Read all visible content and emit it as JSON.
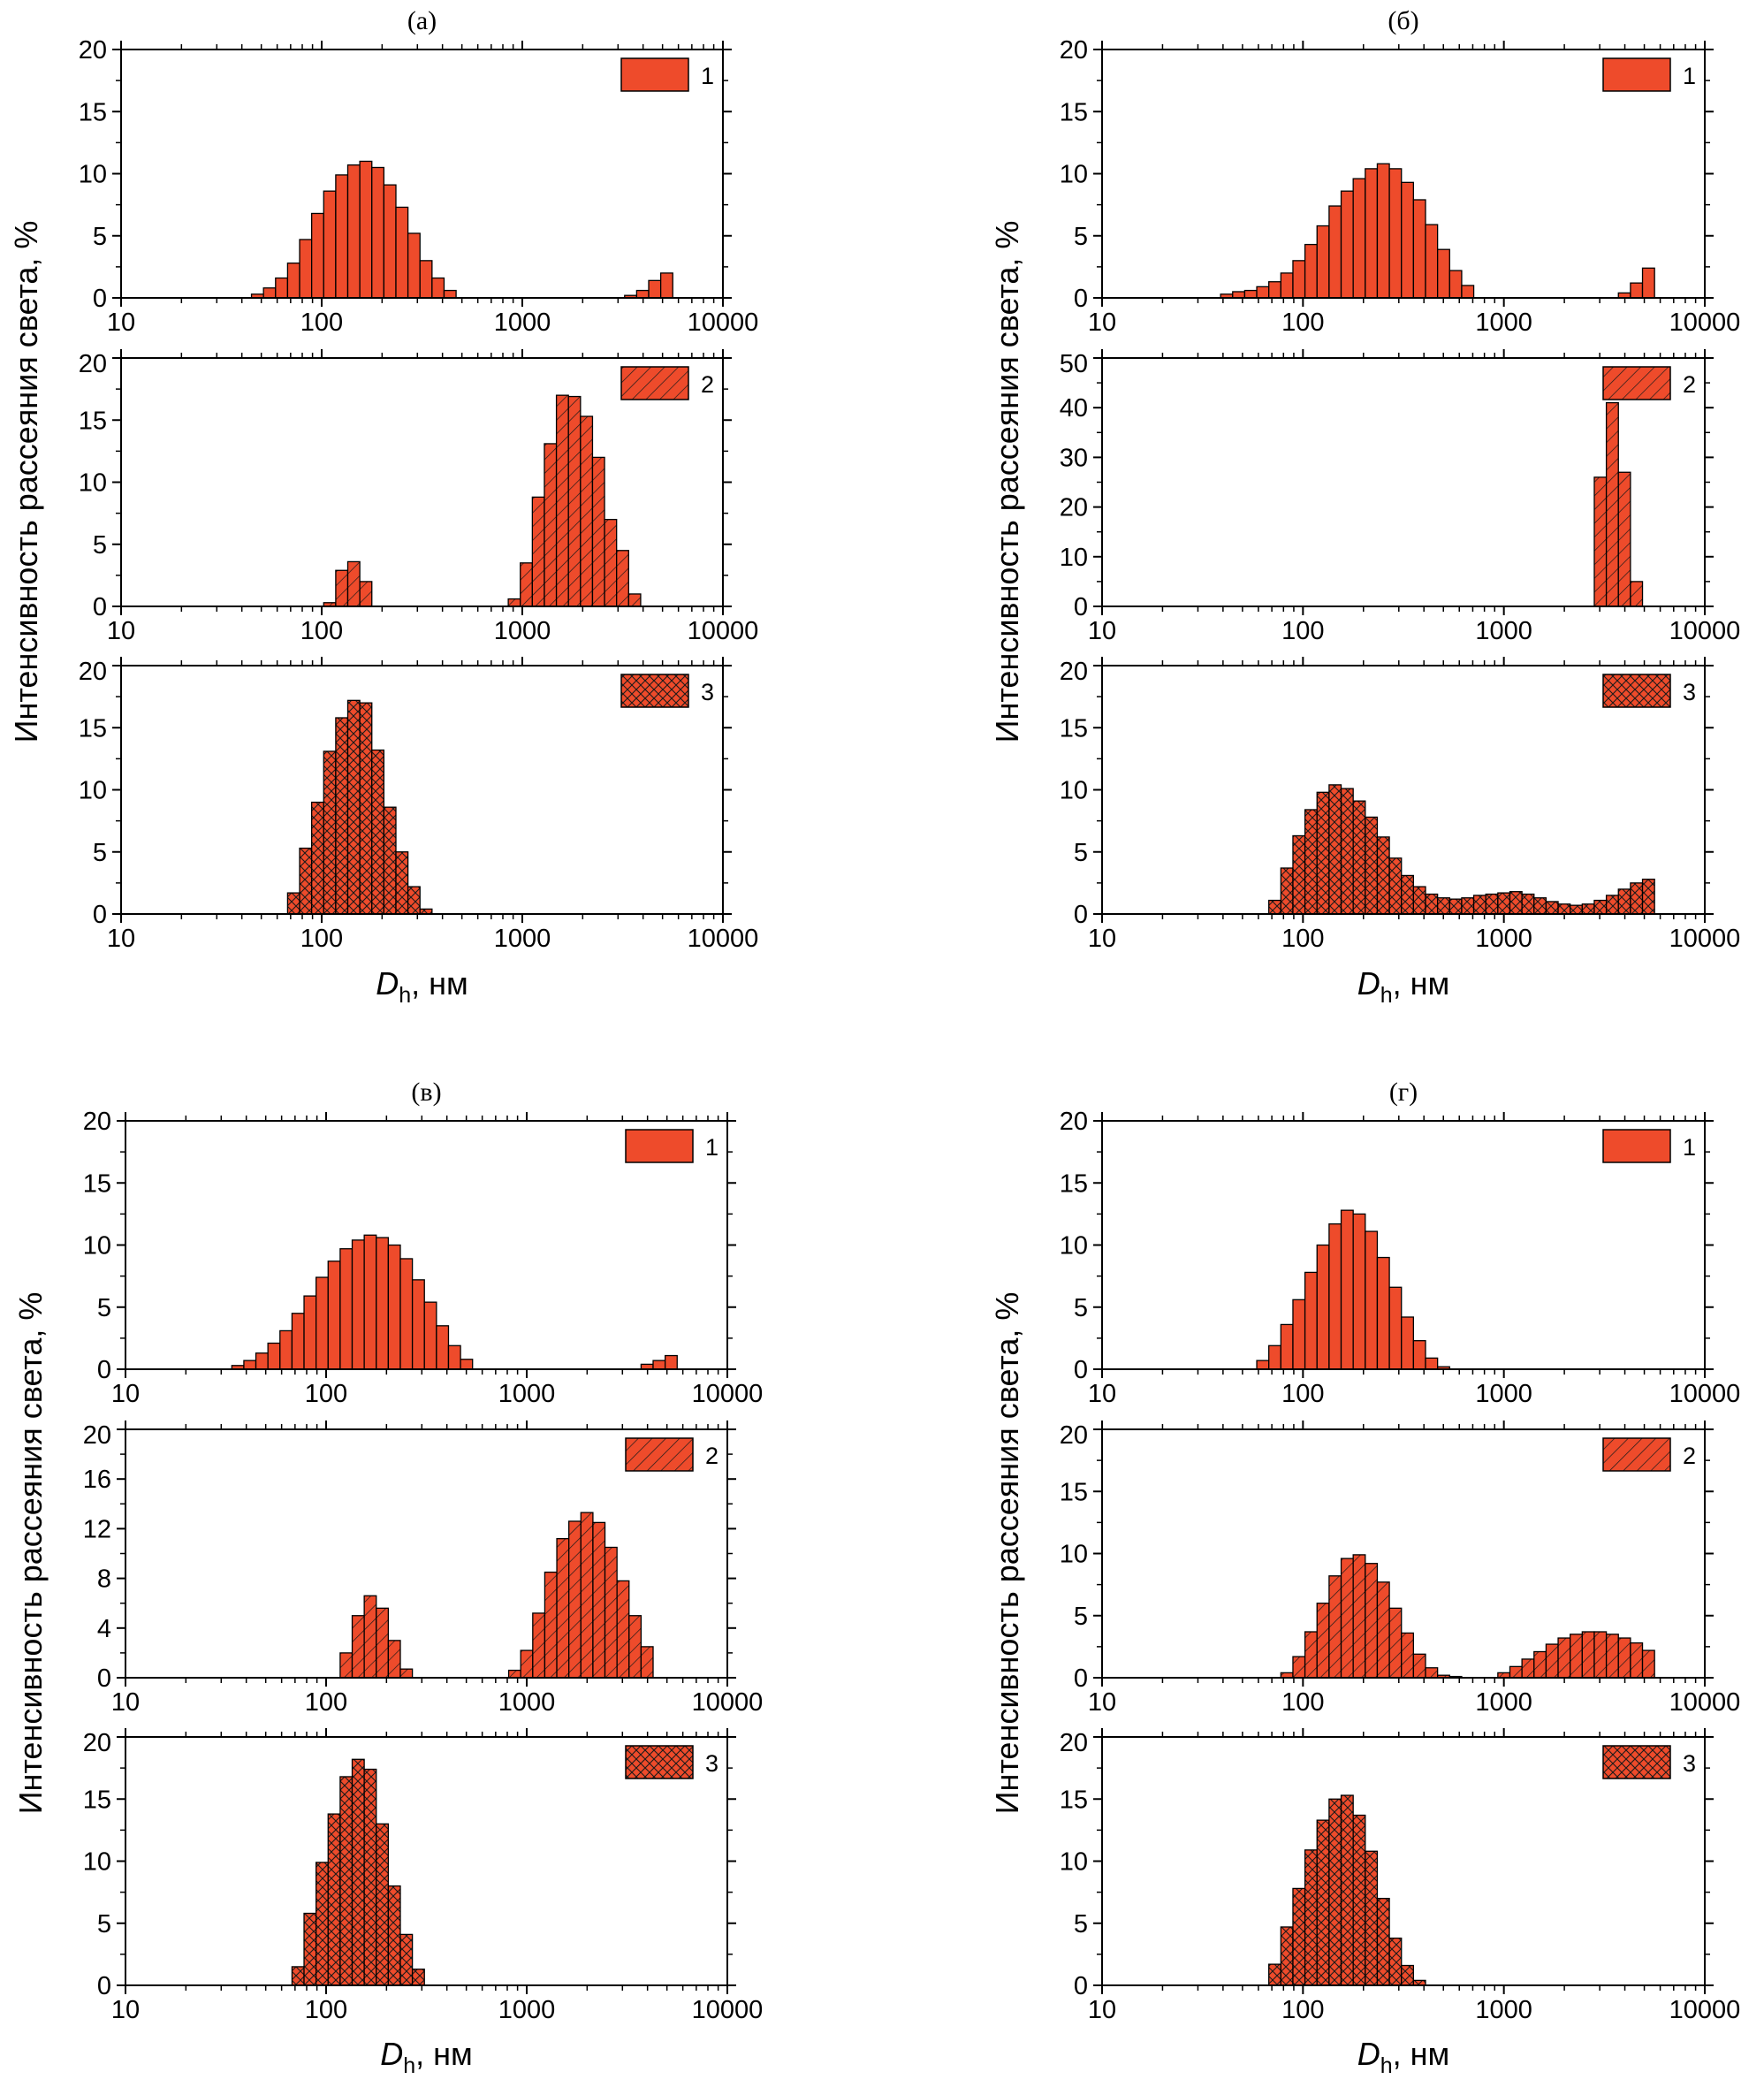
{
  "figure": {
    "ylabel": "Интенсивность рассеяния света, %",
    "xlabel_main": "D",
    "xlabel_sub": "h",
    "xlabel_unit": ", нм",
    "colors": {
      "bar": "#ee4b2b",
      "edge": "#000000",
      "axis": "#000000"
    }
  },
  "chart_data": [
    {
      "panel": "a",
      "title": "(а)",
      "subplots": [
        {
          "legend": "1",
          "pattern": "solid",
          "ylim": [
            0,
            20
          ],
          "yticks": [
            0,
            5,
            10,
            15,
            20
          ],
          "bins_log10": [
            1.68,
            1.74,
            1.8,
            1.86,
            1.92,
            1.98,
            2.04,
            2.1,
            2.16,
            2.22,
            2.28,
            2.34,
            2.4,
            2.46,
            2.52,
            2.58,
            2.64,
            3.54,
            3.6,
            3.66,
            3.72
          ],
          "values": [
            0.3,
            0.8,
            1.6,
            2.8,
            4.7,
            6.8,
            8.6,
            9.9,
            10.7,
            11.0,
            10.5,
            9.1,
            7.3,
            5.2,
            3.0,
            1.6,
            0.6,
            0.2,
            0.6,
            1.4,
            2.0
          ]
        },
        {
          "legend": "2",
          "pattern": "hatch",
          "ylim": [
            0,
            20
          ],
          "yticks": [
            0,
            5,
            10,
            15,
            20
          ],
          "bins_log10": [
            2.04,
            2.1,
            2.16,
            2.22,
            2.96,
            3.02,
            3.08,
            3.14,
            3.2,
            3.26,
            3.32,
            3.38,
            3.44,
            3.5,
            3.56
          ],
          "values": [
            0.3,
            2.9,
            3.6,
            2.0,
            0.6,
            3.5,
            8.8,
            13.1,
            17.0,
            16.9,
            15.3,
            12.0,
            7.0,
            4.5,
            1.0
          ]
        },
        {
          "legend": "3",
          "pattern": "crosshatch",
          "ylim": [
            0,
            20
          ],
          "yticks": [
            0,
            5,
            10,
            15,
            20
          ],
          "bins_log10": [
            1.86,
            1.92,
            1.98,
            2.04,
            2.1,
            2.16,
            2.22,
            2.28,
            2.34,
            2.4,
            2.46,
            2.52
          ],
          "values": [
            1.7,
            5.3,
            9.0,
            13.1,
            15.8,
            17.2,
            17.0,
            13.2,
            8.6,
            5.0,
            2.2,
            0.4
          ]
        }
      ]
    },
    {
      "panel": "b",
      "title": "(б)",
      "subplots": [
        {
          "legend": "1",
          "pattern": "solid",
          "ylim": [
            0,
            20
          ],
          "yticks": [
            0,
            5,
            10,
            15,
            20
          ],
          "bins_log10": [
            1.62,
            1.68,
            1.74,
            1.8,
            1.86,
            1.92,
            1.98,
            2.04,
            2.1,
            2.16,
            2.22,
            2.28,
            2.34,
            2.4,
            2.46,
            2.52,
            2.58,
            2.64,
            2.7,
            2.76,
            2.82,
            3.6,
            3.66,
            3.72
          ],
          "values": [
            0.3,
            0.5,
            0.6,
            0.9,
            1.3,
            2.0,
            3.0,
            4.3,
            5.8,
            7.4,
            8.6,
            9.6,
            10.4,
            10.8,
            10.4,
            9.3,
            7.9,
            5.9,
            3.9,
            2.2,
            1.0,
            0.4,
            1.2,
            2.4
          ]
        },
        {
          "legend": "2",
          "pattern": "hatch",
          "ylim": [
            0,
            50
          ],
          "yticks": [
            0,
            10,
            20,
            30,
            40,
            50
          ],
          "bins_log10": [
            3.48,
            3.54,
            3.6,
            3.66
          ],
          "values": [
            26.0,
            41.0,
            27.0,
            5.0
          ]
        },
        {
          "legend": "3",
          "pattern": "crosshatch",
          "ylim": [
            0,
            20
          ],
          "yticks": [
            0,
            5,
            10,
            15,
            20
          ],
          "bins_log10": [
            1.86,
            1.92,
            1.98,
            2.04,
            2.1,
            2.16,
            2.22,
            2.28,
            2.34,
            2.4,
            2.46,
            2.52,
            2.58,
            2.64,
            2.7,
            2.76,
            2.82,
            2.88,
            2.94,
            3.0,
            3.06,
            3.12,
            3.18,
            3.24,
            3.3,
            3.36,
            3.42,
            3.48,
            3.54,
            3.6,
            3.66,
            3.72
          ],
          "values": [
            1.1,
            3.7,
            6.3,
            8.4,
            9.8,
            10.4,
            10.1,
            9.1,
            7.8,
            6.2,
            4.5,
            3.1,
            2.2,
            1.6,
            1.3,
            1.2,
            1.3,
            1.5,
            1.6,
            1.7,
            1.8,
            1.6,
            1.3,
            1.0,
            0.8,
            0.7,
            0.8,
            1.1,
            1.5,
            2.0,
            2.5,
            2.8
          ]
        }
      ]
    },
    {
      "panel": "c",
      "title": "(в)",
      "subplots": [
        {
          "legend": "1",
          "pattern": "solid",
          "ylim": [
            0,
            20
          ],
          "yticks": [
            0,
            5,
            10,
            15,
            20
          ],
          "bins_log10": [
            1.56,
            1.62,
            1.68,
            1.74,
            1.8,
            1.86,
            1.92,
            1.98,
            2.04,
            2.1,
            2.16,
            2.22,
            2.28,
            2.34,
            2.4,
            2.46,
            2.52,
            2.58,
            2.64,
            2.7,
            3.6,
            3.66,
            3.72
          ],
          "values": [
            0.3,
            0.7,
            1.3,
            2.1,
            3.1,
            4.5,
            5.9,
            7.4,
            8.7,
            9.7,
            10.4,
            10.8,
            10.6,
            10.0,
            8.9,
            7.2,
            5.4,
            3.5,
            1.9,
            0.8,
            0.4,
            0.7,
            1.1
          ]
        },
        {
          "legend": "2",
          "pattern": "hatch",
          "ylim": [
            0,
            20
          ],
          "yticks": [
            0,
            4,
            8,
            12,
            16,
            20
          ],
          "bins_log10": [
            2.1,
            2.16,
            2.22,
            2.28,
            2.34,
            2.4,
            2.94,
            3.0,
            3.06,
            3.12,
            3.18,
            3.24,
            3.3,
            3.36,
            3.42,
            3.48,
            3.54,
            3.6
          ],
          "values": [
            2.0,
            5.0,
            6.6,
            5.6,
            3.0,
            0.7,
            0.6,
            2.2,
            5.2,
            8.5,
            11.2,
            12.6,
            13.3,
            12.5,
            10.5,
            7.8,
            5.0,
            2.5
          ]
        },
        {
          "legend": "3",
          "pattern": "crosshatch",
          "ylim": [
            0,
            20
          ],
          "yticks": [
            0,
            5,
            10,
            15,
            20
          ],
          "bins_log10": [
            1.86,
            1.92,
            1.98,
            2.04,
            2.1,
            2.16,
            2.22,
            2.28,
            2.34,
            2.4,
            2.46
          ],
          "values": [
            1.5,
            5.8,
            9.9,
            13.8,
            16.8,
            18.2,
            17.4,
            13.0,
            8.0,
            4.1,
            1.3
          ]
        }
      ]
    },
    {
      "panel": "d",
      "title": "(г)",
      "subplots": [
        {
          "legend": "1",
          "pattern": "solid",
          "ylim": [
            0,
            20
          ],
          "yticks": [
            0,
            5,
            10,
            15,
            20
          ],
          "bins_log10": [
            1.8,
            1.86,
            1.92,
            1.98,
            2.04,
            2.1,
            2.16,
            2.22,
            2.28,
            2.34,
            2.4,
            2.46,
            2.52,
            2.58,
            2.64,
            2.7
          ],
          "values": [
            0.7,
            1.9,
            3.6,
            5.6,
            7.8,
            10.0,
            11.7,
            12.8,
            12.5,
            11.1,
            9.0,
            6.6,
            4.2,
            2.3,
            0.9,
            0.2
          ]
        },
        {
          "legend": "2",
          "pattern": "hatch",
          "ylim": [
            0,
            20
          ],
          "yticks": [
            0,
            5,
            10,
            15,
            20
          ],
          "bins_log10": [
            1.92,
            1.98,
            2.04,
            2.1,
            2.16,
            2.22,
            2.28,
            2.34,
            2.4,
            2.46,
            2.52,
            2.58,
            2.64,
            2.7,
            2.76,
            3.0,
            3.06,
            3.12,
            3.18,
            3.24,
            3.3,
            3.36,
            3.42,
            3.48,
            3.54,
            3.6,
            3.66,
            3.72
          ],
          "values": [
            0.4,
            1.7,
            3.7,
            6.0,
            8.2,
            9.6,
            9.9,
            9.2,
            7.7,
            5.6,
            3.6,
            1.9,
            0.8,
            0.2,
            0.1,
            0.4,
            0.9,
            1.5,
            2.1,
            2.7,
            3.2,
            3.5,
            3.7,
            3.7,
            3.5,
            3.2,
            2.8,
            2.2
          ]
        },
        {
          "legend": "3",
          "pattern": "crosshatch",
          "ylim": [
            0,
            20
          ],
          "yticks": [
            0,
            5,
            10,
            15,
            20
          ],
          "bins_log10": [
            1.86,
            1.92,
            1.98,
            2.04,
            2.1,
            2.16,
            2.22,
            2.28,
            2.34,
            2.4,
            2.46,
            2.52,
            2.58
          ],
          "values": [
            1.7,
            4.7,
            7.8,
            10.9,
            13.3,
            15.0,
            15.3,
            13.7,
            10.8,
            7.0,
            3.8,
            1.6,
            0.4
          ]
        }
      ]
    }
  ],
  "x_axis": {
    "type": "log",
    "range": [
      10,
      10000
    ],
    "ticks": [
      "10",
      "100",
      "1000",
      "10000"
    ]
  }
}
